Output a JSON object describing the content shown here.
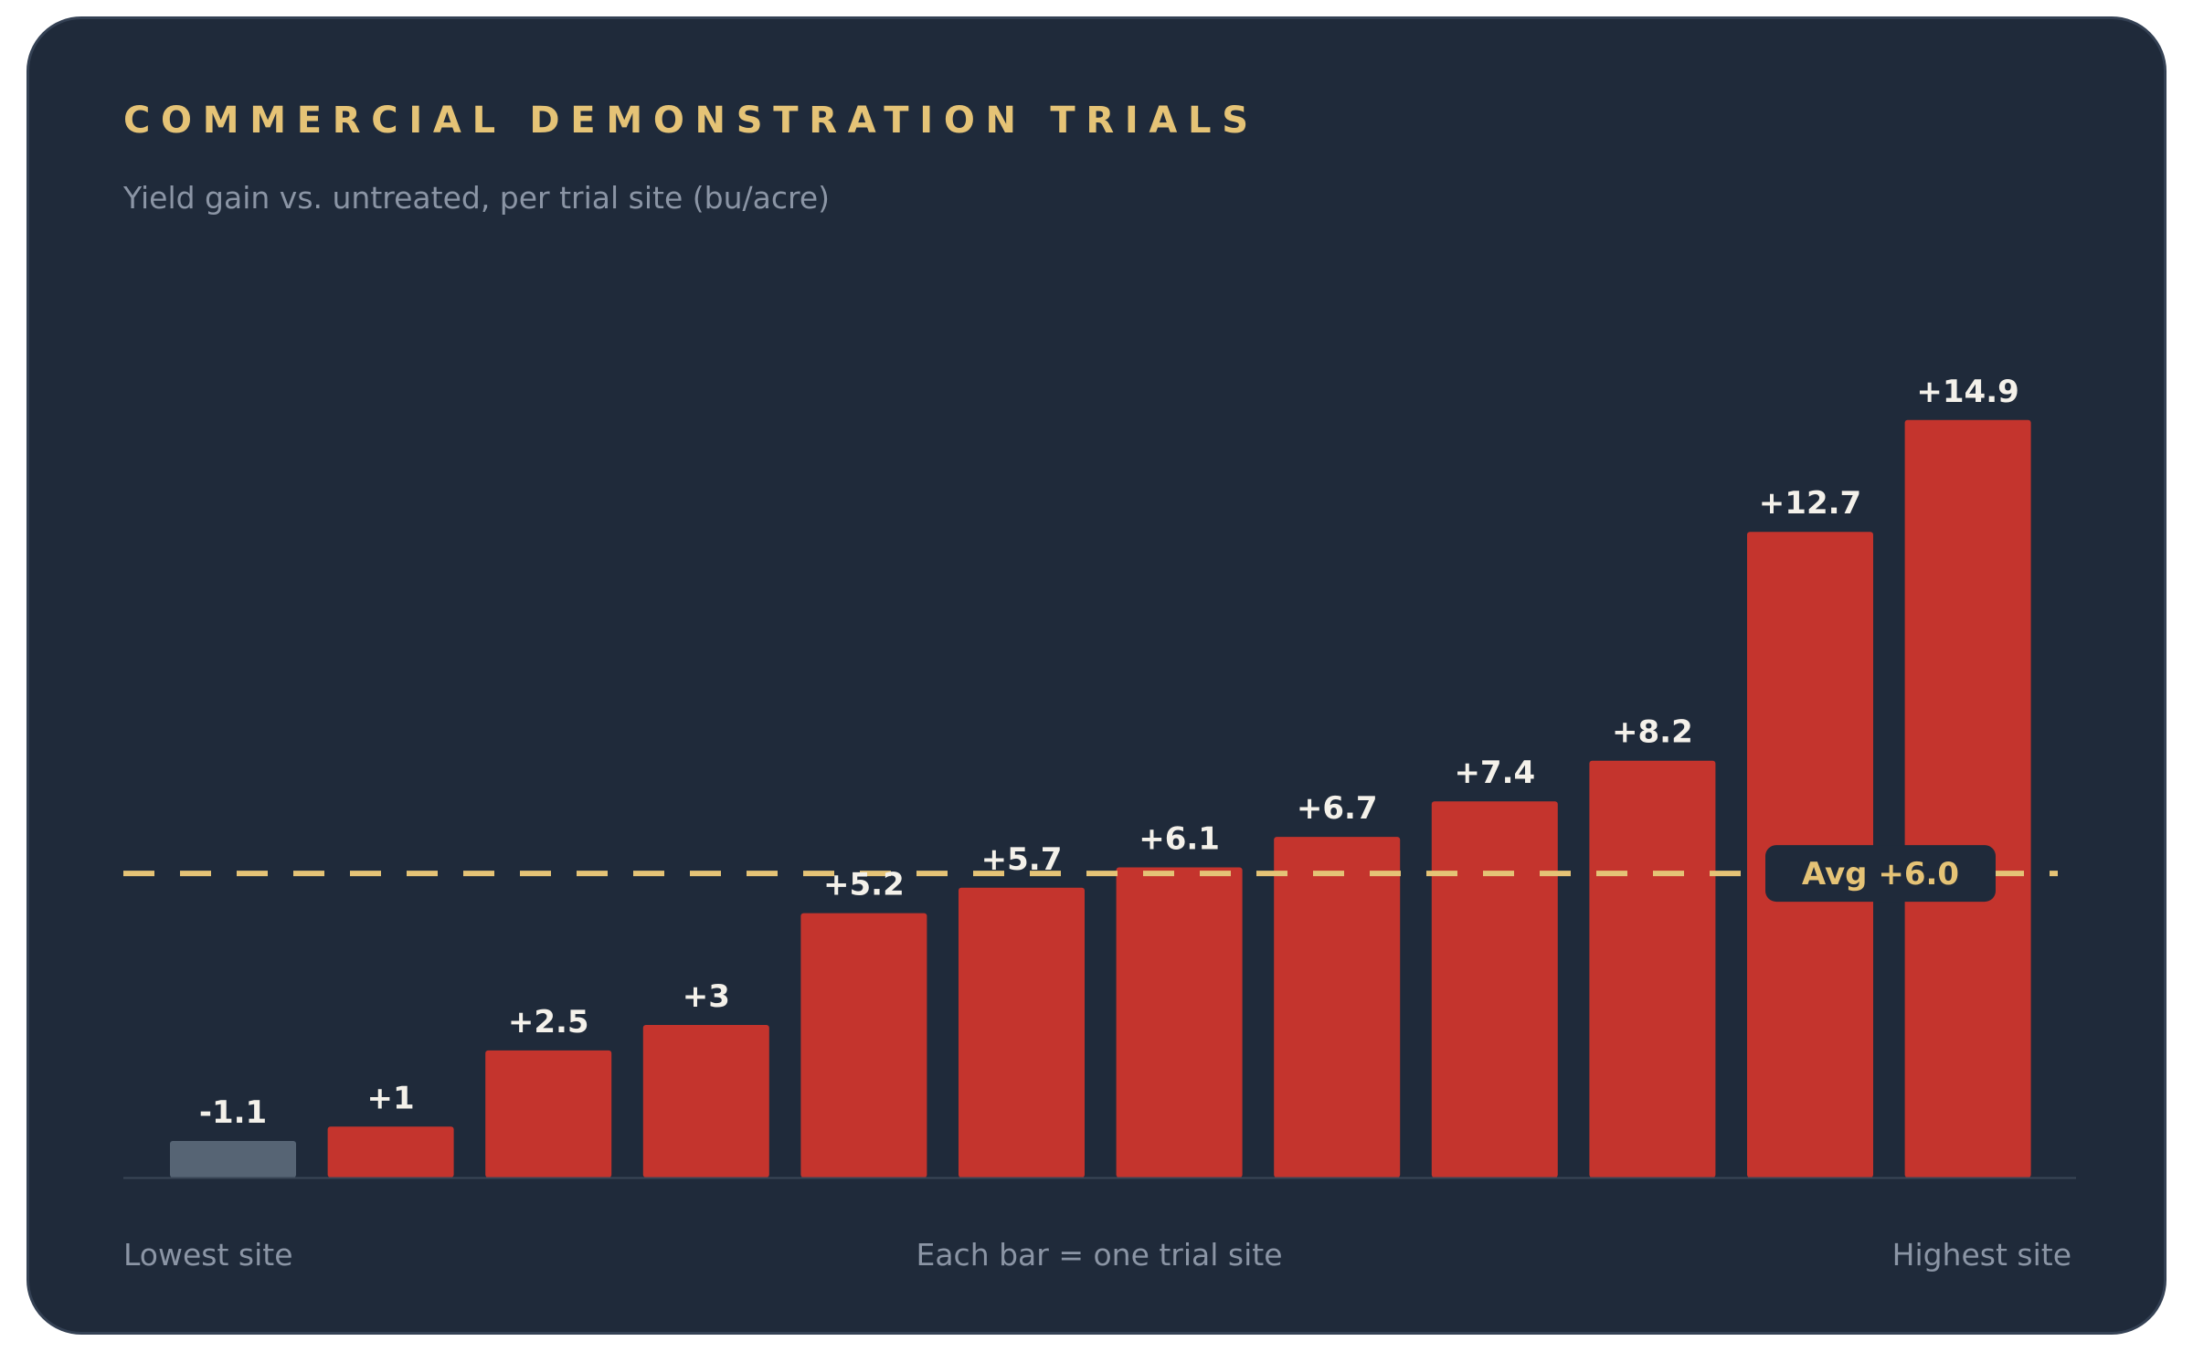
{
  "header": {
    "title": "COMMERCIAL DEMONSTRATION TRIALS",
    "subtitle": "Yield gain vs. untreated, per trial site (bu/acre)"
  },
  "chart_data": {
    "type": "bar",
    "title": "COMMERCIAL DEMONSTRATION TRIALS",
    "subtitle": "Yield gain vs. untreated, per trial site (bu/acre)",
    "xlabel": "",
    "ylabel": "",
    "values": [
      -1.1,
      1,
      2.5,
      3,
      5.2,
      5.7,
      6.1,
      6.7,
      7.4,
      8.2,
      12.7,
      14.9
    ],
    "labels": [
      "-1.1",
      "+1",
      "+2.5",
      "+3",
      "+5.2",
      "+5.7",
      "+6.1",
      "+6.7",
      "+7.4",
      "+8.2",
      "+12.7",
      "+14.9"
    ],
    "ylim": [
      -2,
      16
    ],
    "grid": false,
    "average": {
      "value": 6.0,
      "label": "Avg +6.0"
    },
    "colors": {
      "positive": "#c4342d",
      "negative": "#566474",
      "average_line": "#e5c376",
      "bar_label": "#f4f1ea",
      "baseline": "#3a4656"
    }
  },
  "footer": {
    "left": "Lowest site",
    "center": "Each bar = one trial site",
    "right": "Highest site"
  }
}
